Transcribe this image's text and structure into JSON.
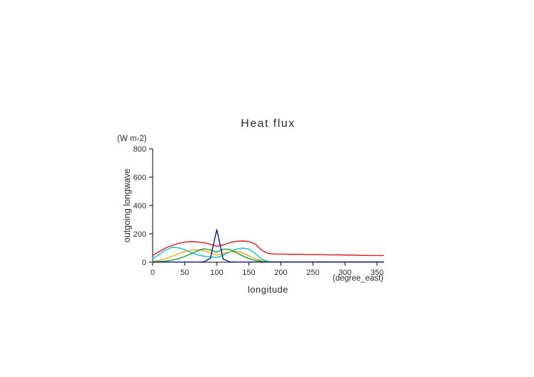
{
  "page": {
    "background": "#ffffff"
  },
  "chart_data": {
    "type": "line",
    "title": "Heat flux",
    "ylabel": "outgoing longwave",
    "y_units": "(W m-2)",
    "xlabel": "longitude",
    "x_units": "(degree_east)",
    "xlim": [
      0,
      360
    ],
    "ylim": [
      0,
      800
    ],
    "x_ticks": [
      0,
      50,
      100,
      150,
      200,
      250,
      300,
      350
    ],
    "y_ticks": [
      0,
      200,
      400,
      600,
      800
    ],
    "grid": false,
    "legend": "none",
    "axis_color": "#000000",
    "x": [
      0,
      10,
      20,
      30,
      40,
      50,
      60,
      70,
      80,
      90,
      100,
      110,
      120,
      130,
      140,
      150,
      160,
      170,
      180,
      190,
      200,
      210,
      220,
      230,
      240,
      250,
      260,
      270,
      280,
      290,
      300,
      310,
      320,
      330,
      340,
      350,
      360
    ],
    "series": [
      {
        "name": "cyan-series",
        "color": "#00c8d0",
        "values": [
          25,
          55,
          85,
          105,
          102,
          88,
          68,
          52,
          42,
          38,
          33,
          48,
          72,
          92,
          100,
          92,
          62,
          22,
          6,
          3,
          2,
          2,
          2,
          2,
          2,
          2,
          2,
          2,
          2,
          2,
          2,
          2,
          2,
          2,
          2,
          2,
          2
        ]
      },
      {
        "name": "orange-series",
        "color": "#f0a510",
        "values": [
          5,
          12,
          25,
          42,
          60,
          75,
          85,
          88,
          82,
          65,
          50,
          62,
          74,
          78,
          66,
          45,
          24,
          9,
          3,
          2,
          2,
          2,
          2,
          2,
          2,
          2,
          2,
          2,
          2,
          2,
          2,
          2,
          2,
          2,
          2,
          2,
          2
        ]
      },
      {
        "name": "green-series",
        "color": "#10a030",
        "values": [
          2,
          4,
          8,
          14,
          24,
          40,
          60,
          80,
          95,
          86,
          70,
          92,
          90,
          68,
          45,
          26,
          12,
          5,
          2,
          1,
          1,
          1,
          1,
          1,
          1,
          1,
          1,
          1,
          1,
          1,
          1,
          1,
          1,
          1,
          1,
          1,
          1
        ]
      },
      {
        "name": "red-series",
        "color": "#e01818",
        "values": [
          48,
          75,
          100,
          118,
          132,
          142,
          145,
          143,
          138,
          126,
          112,
          122,
          138,
          147,
          150,
          146,
          128,
          85,
          62,
          58,
          57,
          56,
          55,
          56,
          54,
          53,
          54,
          52,
          51,
          52,
          50,
          50,
          49,
          48,
          48,
          47,
          47
        ]
      },
      {
        "name": "navy-series",
        "color": "#101090",
        "values": [
          1,
          1,
          1,
          1,
          1,
          1,
          1,
          1,
          3,
          28,
          230,
          22,
          3,
          1,
          1,
          1,
          1,
          1,
          1,
          1,
          1,
          1,
          1,
          1,
          1,
          1,
          1,
          1,
          1,
          1,
          1,
          1,
          1,
          1,
          1,
          1,
          1
        ]
      }
    ]
  }
}
